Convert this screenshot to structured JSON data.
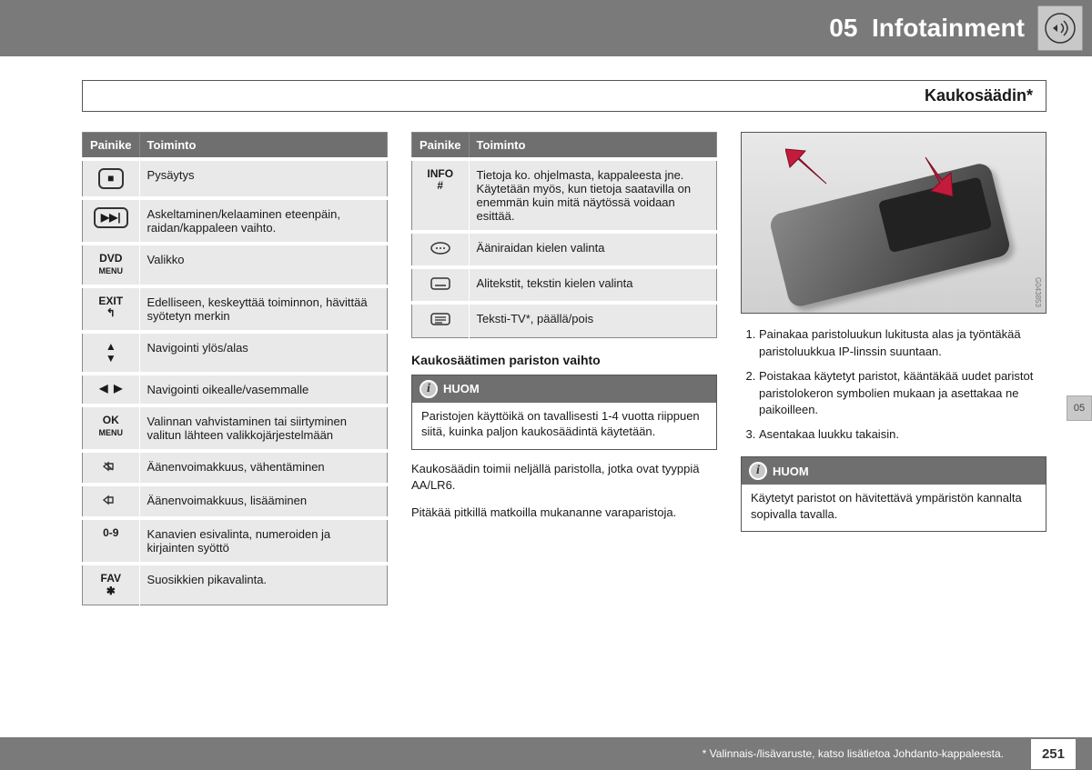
{
  "header": {
    "chapter_num": "05",
    "chapter_title": "Infotainment"
  },
  "section_title": "Kaukosäädin*",
  "side_tab": "05",
  "table1": {
    "head_button": "Painike",
    "head_function": "Toiminto",
    "rows": [
      {
        "icon_html": "<span class='icon-box'>■</span>",
        "text": "Pysäytys"
      },
      {
        "icon_html": "<span class='icon-box'>▶▶|</span>",
        "text": "Askeltaminen/kelaaminen eteenpäin, raidan/kappaleen vaihto."
      },
      {
        "icon_html": "<b>DVD</b><br><span style='font-size:9px'>MENU</span>",
        "text": "Valikko"
      },
      {
        "icon_html": "<b>EXIT</b><br>↰",
        "text": "Edelliseen, keskeyttää toiminnon, hävittää syötetyn merkin"
      },
      {
        "icon_html": "▲<br>▼",
        "text": "Navigointi ylös/alas"
      },
      {
        "icon_html": "◀&nbsp;&nbsp;▶",
        "text": "Navigointi oikealle/vasemmalle"
      },
      {
        "icon_html": "<b>OK</b><br><span style='font-size:9px'>MENU</span>",
        "text": "Valinnan vahvistaminen tai siirtyminen valitun lähteen valikkojärjestelmään"
      },
      {
        "icon_html": "<svg width='18' height='14' viewBox='0 0 18 14'><path d='M1 7 L6 3 L6 11 Z M6 4 H11 V10 H6 Z M2 3 L11 11' stroke='#333' stroke-width='1.4' fill='none'/></svg>",
        "text": "Äänenvoimakkuus, vähentäminen"
      },
      {
        "icon_html": "<svg width='18' height='14' viewBox='0 0 18 14'><path d='M1 7 L6 3 L6 11 Z M6 4 H11 V10 H6 Z' stroke='#333' stroke-width='1.4' fill='none'/></svg>",
        "text": "Äänenvoimakkuus, lisääminen"
      },
      {
        "icon_html": "0-9",
        "text": "Kanavien esivalinta, numeroiden ja kirjainten syöttö"
      },
      {
        "icon_html": "<b>FAV</b><br>✱",
        "text": "Suosikkien pikavalinta."
      }
    ]
  },
  "table2": {
    "head_button": "Painike",
    "head_function": "Toiminto",
    "rows": [
      {
        "icon_html": "<b>INFO</b><br>#",
        "text": "Tietoja ko. ohjelmasta, kappaleesta jne. Käytetään myös, kun tietoja saatavilla on enemmän kuin mitä näytössä voidaan esittää."
      },
      {
        "icon_html": "<svg width='24' height='16' viewBox='0 0 24 16'><ellipse cx='12' cy='8' rx='10' ry='6' fill='none' stroke='#333' stroke-width='1.5'/><circle cx='8' cy='8' r='1' fill='#333'/><circle cx='12' cy='8' r='1' fill='#333'/><circle cx='16' cy='8' r='1' fill='#333'/></svg>",
        "text": "Ääniraidan kielen valinta"
      },
      {
        "icon_html": "<svg width='24' height='16' viewBox='0 0 24 16'><rect x='2' y='2' width='20' height='12' rx='3' fill='none' stroke='#333' stroke-width='1.5'/><line x1='6' y1='10' x2='18' y2='10' stroke='#333' stroke-width='1.5'/></svg>",
        "text": "Alitekstit, tekstin kielen valinta"
      },
      {
        "icon_html": "<svg width='24' height='16' viewBox='0 0 24 16'><rect x='2' y='2' width='20' height='12' rx='3' fill='none' stroke='#333' stroke-width='1.5'/><line x1='6' y1='6' x2='18' y2='6' stroke='#333' stroke-width='1.3'/><line x1='6' y1='9' x2='18' y2='9' stroke='#333' stroke-width='1.3'/><line x1='6' y1='12' x2='14' y2='12' stroke='#333' stroke-width='1.3'/></svg>",
        "text": "Teksti-TV*, päällä/pois"
      }
    ]
  },
  "col2": {
    "subhead": "Kaukosäätimen pariston vaihto",
    "note_label": "HUOM",
    "note_text": "Paristojen käyttöikä on tavallisesti 1-4 vuotta riippuen siitä, kuinka paljon kaukosäädintä käytetään.",
    "p1": "Kaukosäädin toimii neljällä paristolla, jotka ovat tyyppiä AA/LR6.",
    "p2": "Pitäkää pitkillä matkoilla mukananne varaparistoja."
  },
  "col3": {
    "image_code": "G043853",
    "steps": [
      "Painakaa paristoluukun lukitusta alas ja työntäkää paristoluukkua IP-linssin suuntaan.",
      "Poistakaa käytetyt paristot, kääntäkää uudet paristot paristolokeron symbolien mukaan ja asettakaa ne paikoilleen.",
      "Asentakaa luukku takaisin."
    ],
    "note_label": "HUOM",
    "note_text": "Käytetyt paristot on hävitettävä ympäristön kannalta sopivalla tavalla."
  },
  "footer": {
    "note": "* Valinnais-/lisävaruste, katso lisätietoa Johdanto-kappaleesta.",
    "page": "251"
  }
}
